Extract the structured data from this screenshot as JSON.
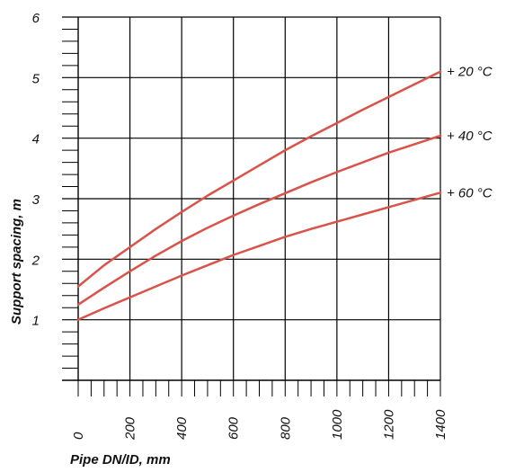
{
  "chart_data": {
    "type": "line",
    "xlabel": "Pipe DN/ID, mm",
    "ylabel": "Support spacing, m",
    "xlim": [
      0,
      1400
    ],
    "ylim": [
      0,
      6
    ],
    "x_ticks": [
      "0",
      "200",
      "400",
      "600",
      "800",
      "1000",
      "1200",
      "1400"
    ],
    "y_ticks": [
      "1",
      "2",
      "3",
      "4",
      "5",
      "6"
    ],
    "grid": true,
    "line_color": "#d9534a",
    "series": [
      {
        "name": "+ 20 °C",
        "x": [
          0,
          100,
          200,
          300,
          400,
          500,
          600,
          700,
          800,
          900,
          1000,
          1100,
          1200,
          1300,
          1400
        ],
        "y": [
          1.55,
          1.9,
          2.2,
          2.5,
          2.78,
          3.05,
          3.3,
          3.55,
          3.8,
          4.03,
          4.25,
          4.47,
          4.68,
          4.89,
          5.1
        ]
      },
      {
        "name": "+ 40 °C",
        "x": [
          0,
          100,
          200,
          300,
          400,
          500,
          600,
          700,
          800,
          900,
          1000,
          1100,
          1200,
          1300,
          1400
        ],
        "y": [
          1.25,
          1.53,
          1.8,
          2.06,
          2.3,
          2.52,
          2.72,
          2.91,
          3.09,
          3.27,
          3.44,
          3.6,
          3.76,
          3.9,
          4.04
        ]
      },
      {
        "name": "+ 60 °C",
        "x": [
          0,
          100,
          200,
          300,
          400,
          500,
          600,
          700,
          800,
          900,
          1000,
          1100,
          1200,
          1300,
          1400
        ],
        "y": [
          1.0,
          1.19,
          1.37,
          1.55,
          1.73,
          1.9,
          2.07,
          2.22,
          2.37,
          2.5,
          2.62,
          2.74,
          2.86,
          2.98,
          3.1
        ]
      }
    ]
  }
}
